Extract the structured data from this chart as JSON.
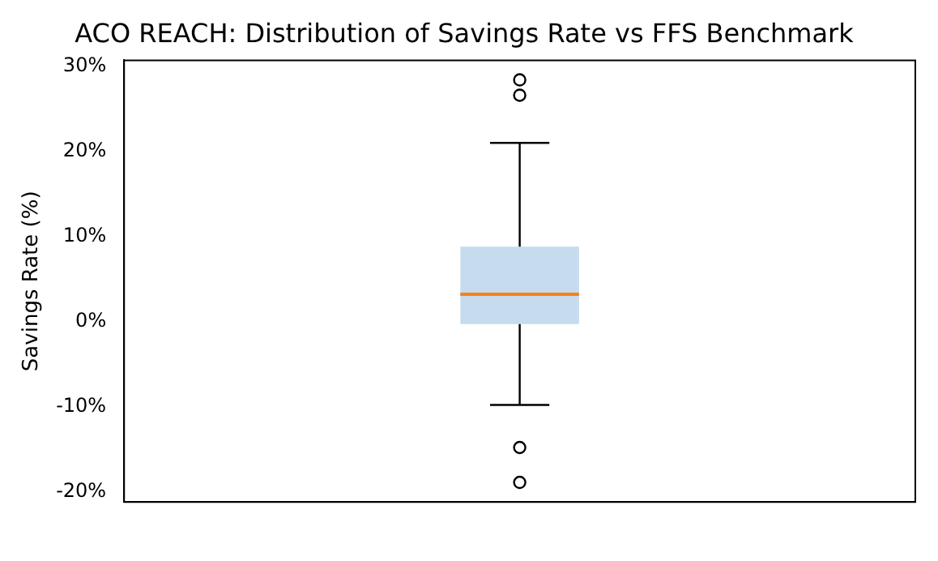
{
  "chart_data": {
    "type": "box",
    "title": "ACO REACH: Distribution of Savings Rate vs FFS Benchmark",
    "ylabel": "Savings Rate (%)",
    "categories": [
      null
    ],
    "boxes": [
      {
        "low": -9.8,
        "q1": -0.3,
        "median": 3.2,
        "q3": 8.8,
        "high": 21,
        "outliers": [
          28.4,
          26.6,
          -14.8,
          -18.9
        ]
      }
    ],
    "color": "#c6dbed",
    "ylim": [
      -21.2,
      30.7
    ],
    "yticks": [
      {
        "value": -20,
        "label": "-20%"
      },
      {
        "value": -10,
        "label": "-10%"
      },
      {
        "value": 0,
        "label": "0%"
      },
      {
        "value": 10,
        "label": "10%"
      },
      {
        "value": 20,
        "label": "20%"
      },
      {
        "value": 30,
        "label": "30%"
      }
    ]
  }
}
